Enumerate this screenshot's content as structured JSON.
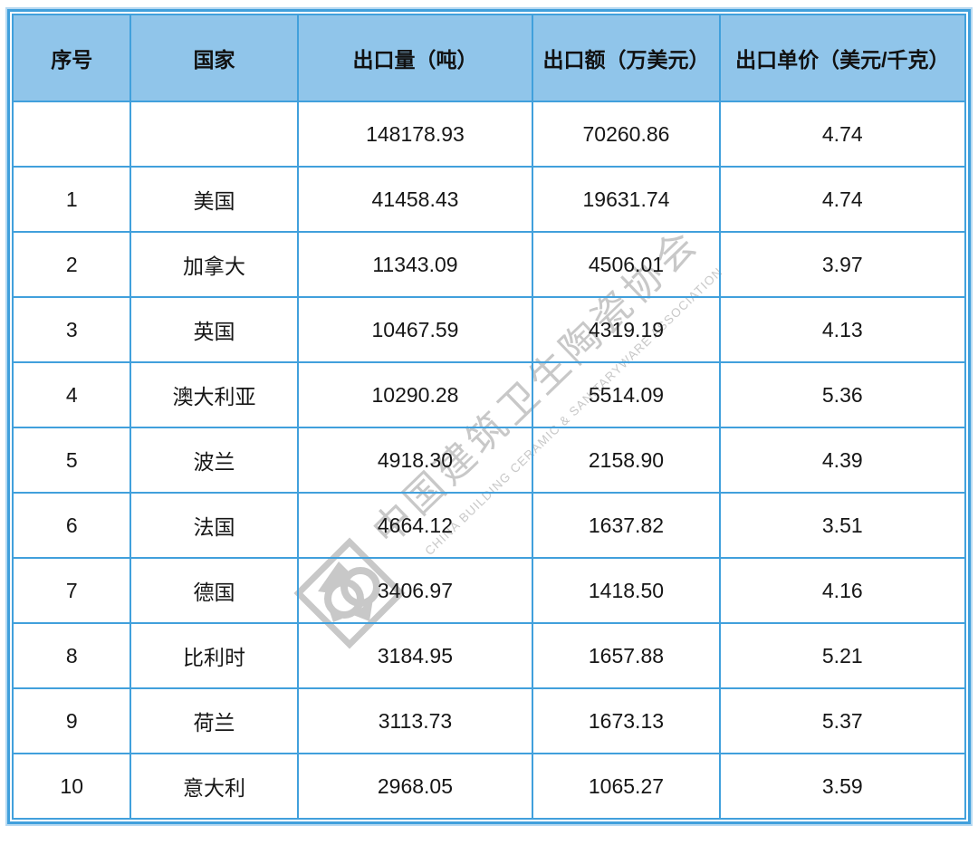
{
  "chart_data": {
    "type": "table",
    "columns": [
      "序号",
      "国家",
      "出口量（吨）",
      "出口额（万美元）",
      "出口单价（美元/千克）"
    ],
    "column_keys": [
      "no",
      "country",
      "export-volume",
      "export-value",
      "export-unit-price"
    ],
    "rows": [
      [
        "",
        "",
        "148178.93",
        "70260.86",
        "4.74"
      ],
      [
        "1",
        "美国",
        "41458.43",
        "19631.74",
        "4.74"
      ],
      [
        "2",
        "加拿大",
        "11343.09",
        "4506.01",
        "3.97"
      ],
      [
        "3",
        "英国",
        "10467.59",
        "4319.19",
        "4.13"
      ],
      [
        "4",
        "澳大利亚",
        "10290.28",
        "5514.09",
        "5.36"
      ],
      [
        "5",
        "波兰",
        "4918.30",
        "2158.90",
        "4.39"
      ],
      [
        "6",
        "法国",
        "4664.12",
        "1637.82",
        "3.51"
      ],
      [
        "7",
        "德国",
        "3406.97",
        "1418.50",
        "4.16"
      ],
      [
        "8",
        "比利时",
        "3184.95",
        "1657.88",
        "5.21"
      ],
      [
        "9",
        "荷兰",
        "3113.73",
        "1673.13",
        "5.37"
      ],
      [
        "10",
        "意大利",
        "2968.05",
        "1065.27",
        "3.59"
      ]
    ],
    "layout": {
      "grid": "on",
      "header_row": true,
      "summary_row_index": 0
    }
  },
  "watermark": {
    "text_cn": "中国建筑卫生陶瓷协会",
    "text_en": "CHINA BUILDING CERAMIC & SANITARYWARE ASSOCIATION",
    "logo": "cbcsa-diamond-rings-logo"
  },
  "colors": {
    "table_border": "#41a0dc",
    "header_bg": "#90c5ea",
    "body_text": "#161616",
    "watermark_gray": "#c8c8c8"
  }
}
